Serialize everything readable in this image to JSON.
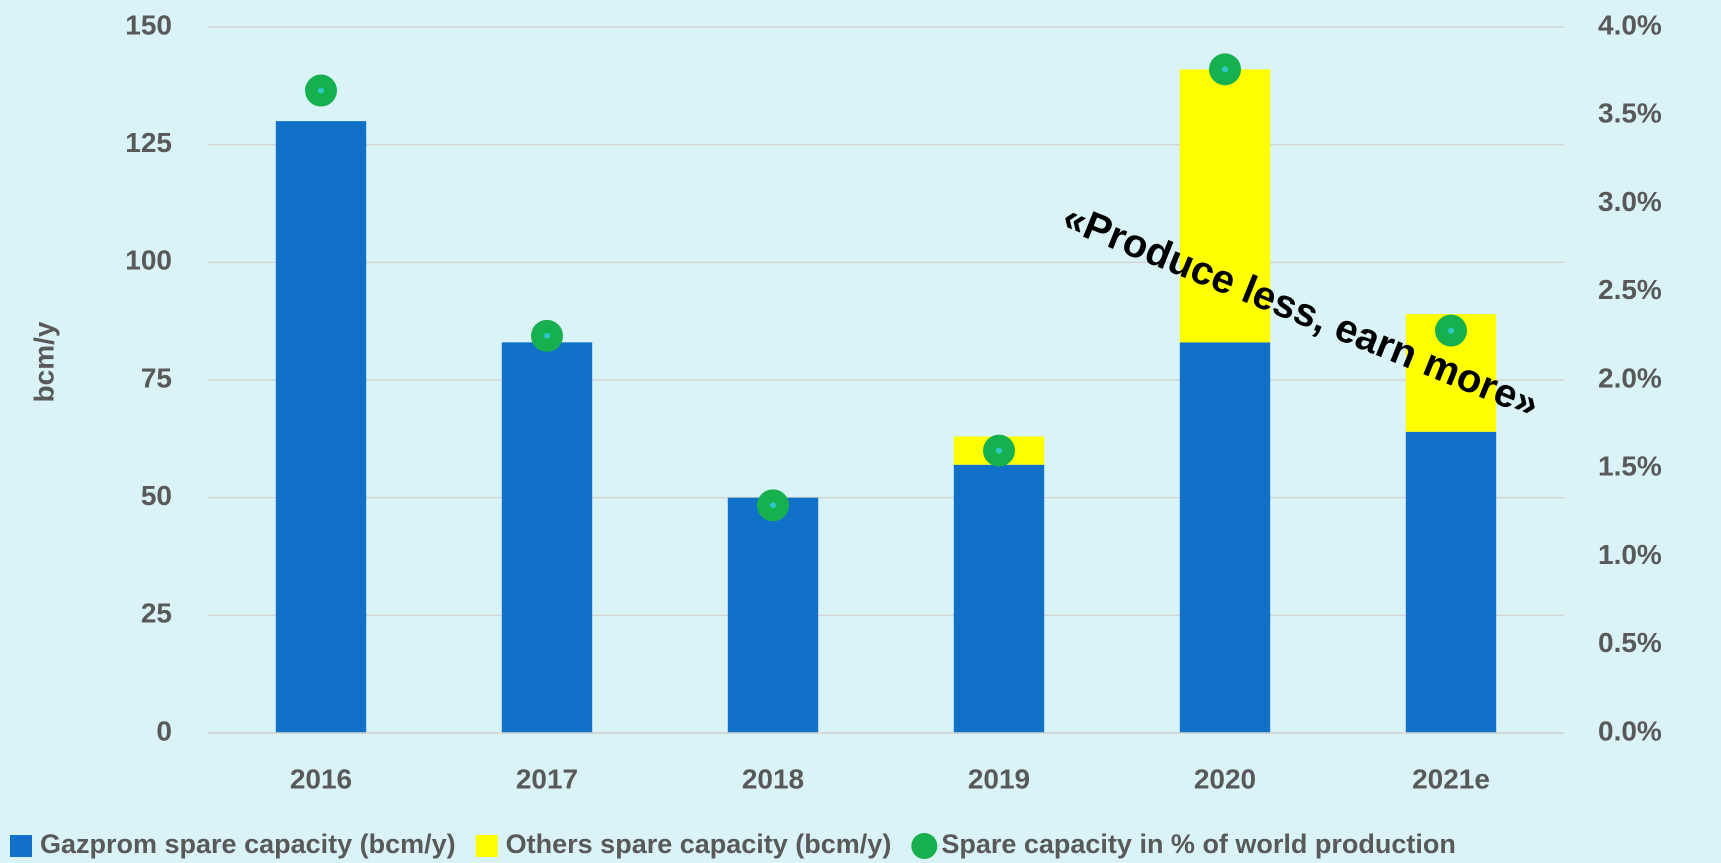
{
  "chart_data": {
    "type": "bar",
    "categories": [
      "2016",
      "2017",
      "2018",
      "2019",
      "2020",
      "2021e"
    ],
    "series": [
      {
        "name": "Gazprom spare capacity (bcm/y)",
        "color": "#1170c8",
        "values": [
          130,
          83,
          50,
          57,
          83,
          64
        ]
      },
      {
        "name": "Others spare capacity (bcm/y)",
        "color": "#ffff00",
        "values": [
          null,
          null,
          null,
          6,
          58,
          25
        ]
      },
      {
        "name": "Spare capacity in % of world production",
        "color": "#16b04e",
        "axis": "y2",
        "values": [
          3.64,
          2.25,
          1.29,
          1.6,
          3.76,
          2.28
        ]
      }
    ],
    "ylabel": "bcm/y",
    "ylim": [
      0,
      150
    ],
    "yticks": [
      0,
      25,
      50,
      75,
      100,
      125,
      150
    ],
    "y2lim": [
      0,
      4
    ],
    "y2ticks": [
      {
        "value": 0,
        "label": "0.0%"
      },
      {
        "value": 0.5,
        "label": "0.5%"
      },
      {
        "value": 1,
        "label": "1.0%"
      },
      {
        "value": 1.5,
        "label": "1.5%"
      },
      {
        "value": 2,
        "label": "2.0%"
      },
      {
        "value": 2.5,
        "label": "2.5%"
      },
      {
        "value": 3,
        "label": "3.0%"
      },
      {
        "value": 3.5,
        "label": "3.5%"
      },
      {
        "value": 4,
        "label": "4.0%"
      }
    ],
    "grid": true,
    "legend": "bottom",
    "annotation": "«Produce less, earn more»"
  }
}
